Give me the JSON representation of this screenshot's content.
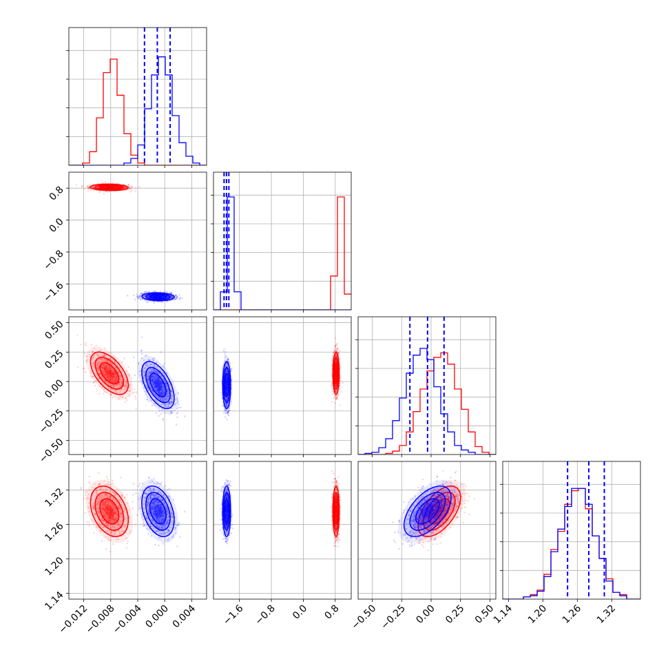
{
  "chart_data": {
    "type": "corner",
    "parameters": 4,
    "colors": {
      "series_a": "#ff0000",
      "series_b": "#0000ff"
    },
    "grid": true,
    "axes": [
      {
        "range": [
          -0.0142,
          0.0062
        ],
        "ticks": [
          {
            "value": -0.012,
            "label": "−0.012"
          },
          {
            "value": -0.008,
            "label": "−0.008"
          },
          {
            "value": -0.004,
            "label": "−0.004"
          },
          {
            "value": 0.0,
            "label": "0.000"
          },
          {
            "value": 0.004,
            "label": "0.004"
          }
        ]
      },
      {
        "range": [
          -2.25,
          1.2
        ],
        "ticks": [
          {
            "value": -1.6,
            "label": "−1.6"
          },
          {
            "value": -0.8,
            "label": "−0.8"
          },
          {
            "value": 0.0,
            "label": "0.0"
          },
          {
            "value": 0.8,
            "label": "0.8"
          }
        ]
      },
      {
        "range": [
          -0.62,
          0.55
        ],
        "ticks": [
          {
            "value": -0.5,
            "label": "−0.50"
          },
          {
            "value": -0.25,
            "label": "−0.25"
          },
          {
            "value": 0.0,
            "label": "0.00"
          },
          {
            "value": 0.25,
            "label": "0.25"
          },
          {
            "value": 0.5,
            "label": "0.50"
          }
        ]
      },
      {
        "range": [
          1.13,
          1.37
        ],
        "ticks": [
          {
            "value": 1.14,
            "label": "1.14"
          },
          {
            "value": 1.2,
            "label": "1.20"
          },
          {
            "value": 1.26,
            "label": "1.26"
          },
          {
            "value": 1.32,
            "label": "1.32"
          }
        ]
      }
    ],
    "series": [
      {
        "color": "#ff0000",
        "means": [
          -0.0082,
          0.82,
          0.07,
          1.283
        ],
        "sds": [
          0.0014,
          0.04,
          0.09,
          0.022
        ],
        "histograms": [
          {
            "start": -0.0142,
            "width": 0.00102,
            "counts": [
              0,
              0,
              0.02,
              0.12,
              0.42,
              0.82,
              0.94,
              0.62,
              0.28,
              0.09,
              0.02,
              0,
              0,
              0,
              0,
              0,
              0,
              0,
              0,
              0
            ]
          },
          {
            "start": -2.25,
            "width": 0.1725,
            "counts": [
              0,
              0,
              0,
              0,
              0,
              0,
              0,
              0,
              0,
              0,
              0,
              0,
              0,
              0,
              0,
              0,
              0,
              0.3,
              1.0,
              0.14
            ]
          },
          {
            "start": -0.62,
            "width": 0.0585,
            "counts": [
              0,
              0,
              0,
              0,
              0.01,
              0.03,
              0.08,
              0.2,
              0.38,
              0.58,
              0.74,
              0.86,
              0.9,
              0.8,
              0.58,
              0.4,
              0.2,
              0.07,
              0.02,
              0
            ]
          },
          {
            "start": 1.13,
            "width": 0.012,
            "counts": [
              0,
              0,
              0,
              0.02,
              0.04,
              0.08,
              0.22,
              0.44,
              0.6,
              0.84,
              0.96,
              0.98,
              0.8,
              0.56,
              0.36,
              0.18,
              0.06,
              0.04,
              0,
              0
            ]
          }
        ]
      },
      {
        "color": "#0000ff",
        "means": [
          -0.001,
          -1.92,
          -0.03,
          1.283
        ],
        "sds": [
          0.0012,
          0.05,
          0.1,
          0.022
        ],
        "histograms": [
          {
            "start": -0.0142,
            "width": 0.00102,
            "counts": [
              0,
              0,
              0,
              0,
              0,
              0,
              0,
              0,
              0.02,
              0.06,
              0.18,
              0.5,
              0.8,
              0.96,
              0.8,
              0.44,
              0.2,
              0.08,
              0.02,
              0
            ]
          },
          {
            "start": -2.25,
            "width": 0.1725,
            "counts": [
              0,
              0.16,
              1.0,
              0.16,
              0,
              0,
              0,
              0,
              0,
              0,
              0,
              0,
              0,
              0,
              0,
              0,
              0,
              0,
              0,
              0
            ]
          },
          {
            "start": -0.62,
            "width": 0.0585,
            "counts": [
              0,
              0.01,
              0.02,
              0.06,
              0.14,
              0.3,
              0.5,
              0.72,
              0.88,
              0.94,
              0.84,
              0.6,
              0.36,
              0.2,
              0.08,
              0.04,
              0.02,
              0,
              0,
              0
            ]
          },
          {
            "start": 1.13,
            "width": 0.012,
            "counts": [
              0,
              0,
              0,
              0.02,
              0.03,
              0.07,
              0.2,
              0.42,
              0.62,
              0.82,
              0.98,
              0.98,
              0.84,
              0.56,
              0.36,
              0.16,
              0.06,
              0.03,
              0,
              0
            ]
          }
        ],
        "quantiles": [
          [
            -0.003,
            -0.0011,
            0.0008
          ],
          [
            -1.985,
            -1.925,
            -1.865
          ],
          [
            -0.18,
            -0.03,
            0.11
          ],
          [
            1.243,
            1.28,
            1.307
          ]
        ]
      }
    ]
  }
}
